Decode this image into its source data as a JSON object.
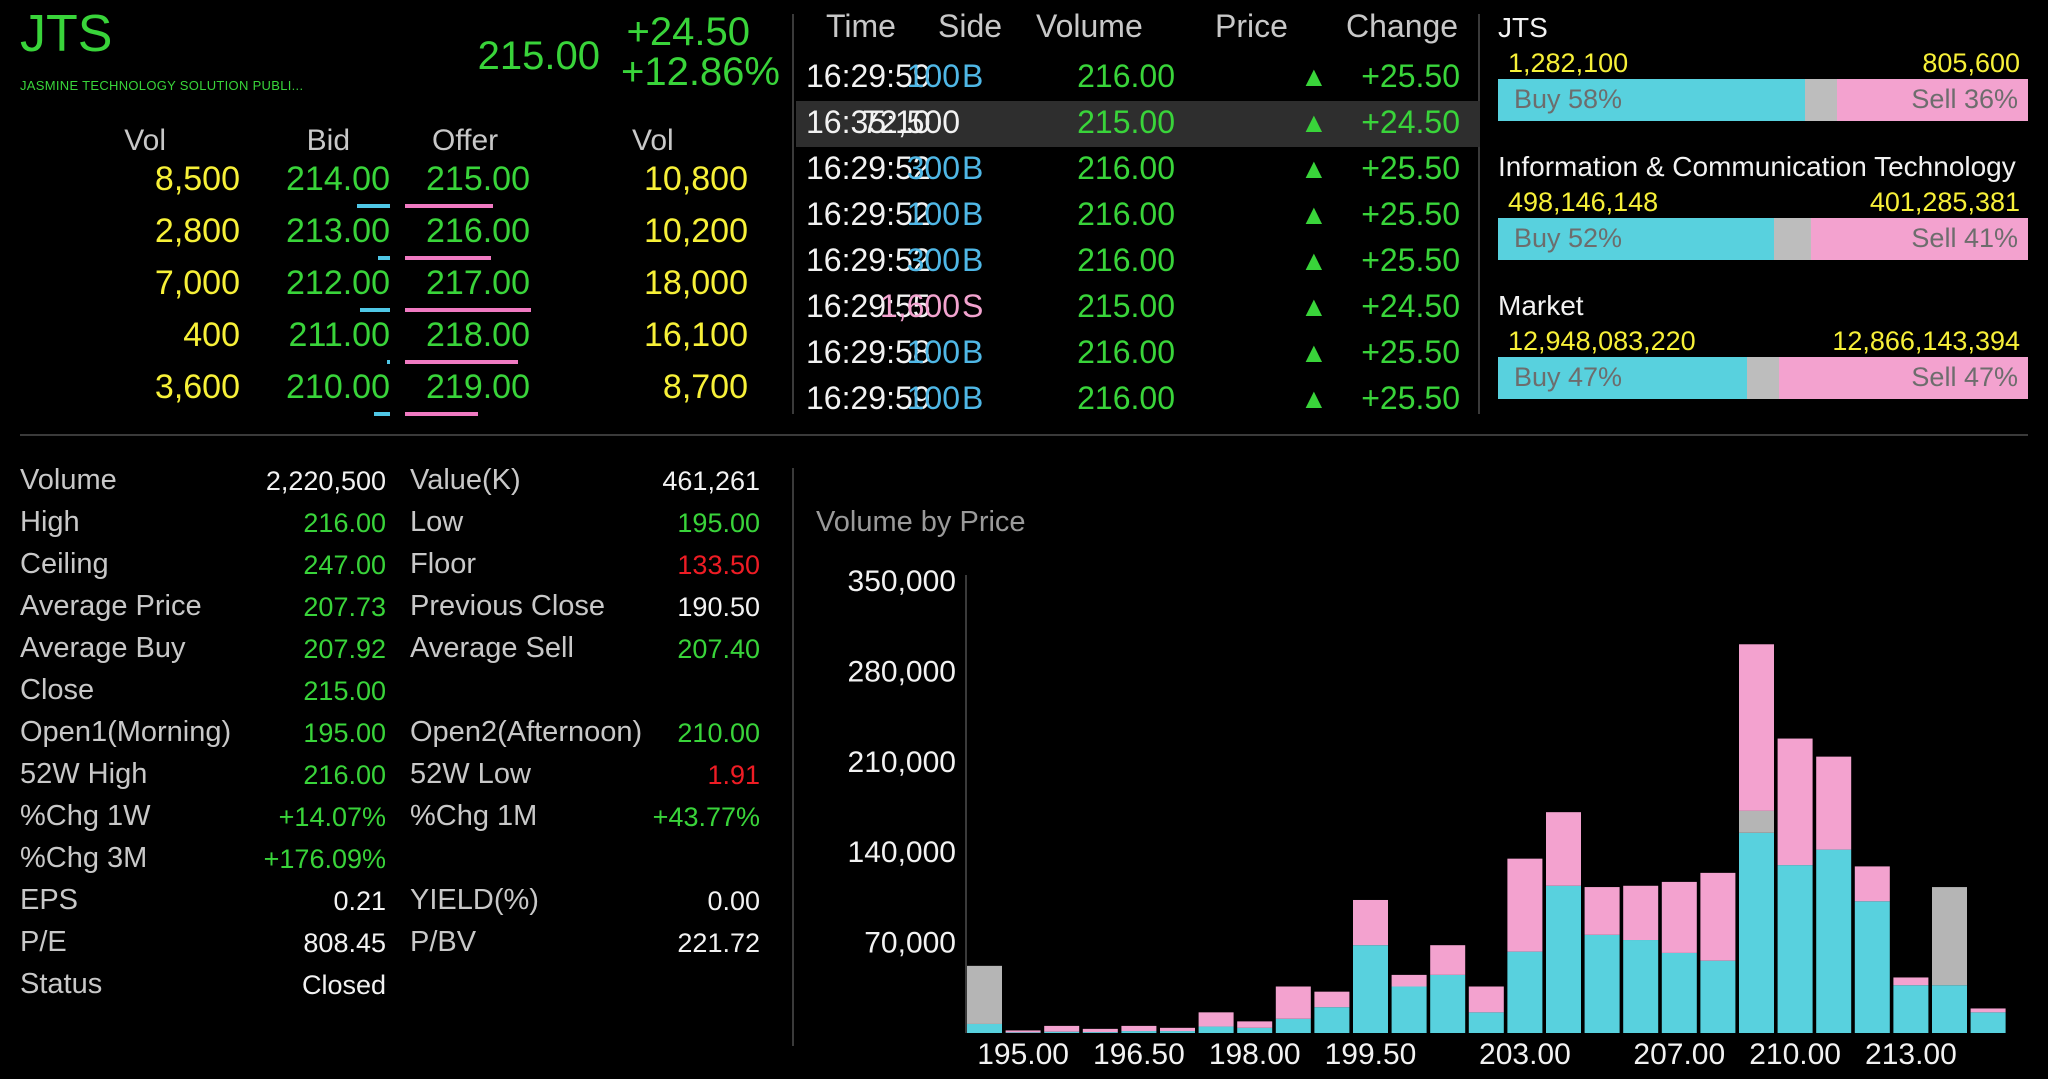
{
  "header": {
    "symbol": "JTS",
    "company": "JASMINE TECHNOLOGY SOLUTION PUBLI...",
    "last": "215.00",
    "change": "+24.50",
    "pct_change": "+12.86%"
  },
  "orderbook": {
    "headers": {
      "vol_bid": "Vol",
      "bid": "Bid",
      "offer": "Offer",
      "vol_offer": "Vol"
    },
    "rows": [
      {
        "bid_vol": "8,500",
        "bid": "214.00",
        "offer": "215.00",
        "offer_vol": "10,800",
        "bid_bar": 0.55,
        "offer_bar": 0.7
      },
      {
        "bid_vol": "2,800",
        "bid": "213.00",
        "offer": "216.00",
        "offer_vol": "10,200",
        "bid_bar": 0.2,
        "offer_bar": 0.68
      },
      {
        "bid_vol": "7,000",
        "bid": "212.00",
        "offer": "217.00",
        "offer_vol": "18,000",
        "bid_bar": 0.5,
        "offer_bar": 1.0
      },
      {
        "bid_vol": "400",
        "bid": "211.00",
        "offer": "218.00",
        "offer_vol": "16,100",
        "bid_bar": 0.03,
        "offer_bar": 0.9
      },
      {
        "bid_vol": "3,600",
        "bid": "210.00",
        "offer": "219.00",
        "offer_vol": "8,700",
        "bid_bar": 0.26,
        "offer_bar": 0.58
      }
    ]
  },
  "ticker": {
    "headers": {
      "time": "Time",
      "side": "Side",
      "volume": "Volume",
      "price": "Price",
      "change": "Change"
    },
    "rows": [
      {
        "time": "16:29:59",
        "side": "B",
        "volume": "100",
        "price": "216.00",
        "change": "+25.50"
      },
      {
        "time": "16:35:10",
        "side": "",
        "volume": "72,500",
        "price": "215.00",
        "change": "+24.50"
      },
      {
        "time": "16:29:52",
        "side": "B",
        "volume": "300",
        "price": "216.00",
        "change": "+25.50"
      },
      {
        "time": "16:29:52",
        "side": "B",
        "volume": "100",
        "price": "216.00",
        "change": "+25.50"
      },
      {
        "time": "16:29:52",
        "side": "B",
        "volume": "300",
        "price": "216.00",
        "change": "+25.50"
      },
      {
        "time": "16:29:55",
        "side": "S",
        "volume": "1,600",
        "price": "215.00",
        "change": "+24.50"
      },
      {
        "time": "16:29:58",
        "side": "B",
        "volume": "100",
        "price": "216.00",
        "change": "+25.50"
      },
      {
        "time": "16:29:59",
        "side": "B",
        "volume": "100",
        "price": "216.00",
        "change": "+25.50"
      }
    ],
    "up_arrow": "▲"
  },
  "pressure": [
    {
      "title": "JTS",
      "buy_vol": "1,282,100",
      "sell_vol": "805,600",
      "buy_label": "Buy 58%",
      "sell_label": "Sell 36%",
      "buy_pct": 58,
      "sell_pct": 36
    },
    {
      "title": "Information & Communication Technology",
      "buy_vol": "498,146,148",
      "sell_vol": "401,285,381",
      "buy_label": "Buy 52%",
      "sell_label": "Sell 41%",
      "buy_pct": 52,
      "sell_pct": 41
    },
    {
      "title": "Market",
      "buy_vol": "12,948,083,220",
      "sell_vol": "12,866,143,394",
      "buy_label": "Buy 47%",
      "sell_label": "Sell 47%",
      "buy_pct": 47,
      "sell_pct": 47
    }
  ],
  "stats": {
    "left": [
      {
        "label": "Volume",
        "value": "2,220,500",
        "color": "#f2f2f2"
      },
      {
        "label": "High",
        "value": "216.00",
        "color": "#39d43a"
      },
      {
        "label": "Ceiling",
        "value": "247.00",
        "color": "#39d43a"
      },
      {
        "label": "Average Price",
        "value": "207.73",
        "color": "#39d43a"
      },
      {
        "label": "Average Buy",
        "value": "207.92",
        "color": "#39d43a"
      },
      {
        "label": "Close",
        "value": "215.00",
        "color": "#39d43a"
      },
      {
        "label": "Open1(Morning)",
        "value": "195.00",
        "color": "#39d43a"
      },
      {
        "label": "52W High",
        "value": "216.00",
        "color": "#39d43a"
      },
      {
        "label": "%Chg 1W",
        "value": "+14.07%",
        "color": "#39d43a"
      },
      {
        "label": "%Chg 3M",
        "value": "+176.09%",
        "color": "#39d43a"
      },
      {
        "label": "EPS",
        "value": "0.21",
        "color": "#f2f2f2"
      },
      {
        "label": "P/E",
        "value": "808.45",
        "color": "#f2f2f2"
      },
      {
        "label": "Status",
        "value": "Closed",
        "color": "#f2f2f2"
      }
    ],
    "right": [
      {
        "label": "Value(K)",
        "value": "461,261",
        "color": "#f2f2f2"
      },
      {
        "label": "Low",
        "value": "195.00",
        "color": "#39d43a"
      },
      {
        "label": "Floor",
        "value": "133.50",
        "color": "#ee1c24"
      },
      {
        "label": "Previous Close",
        "value": "190.50",
        "color": "#f2f2f2"
      },
      {
        "label": "Average Sell",
        "value": "207.40",
        "color": "#39d43a"
      },
      {
        "label": "",
        "value": "",
        "color": "#f2f2f2"
      },
      {
        "label": "Open2(Afternoon)",
        "value": "210.00",
        "color": "#39d43a"
      },
      {
        "label": "52W Low",
        "value": "1.91",
        "color": "#ee1c24"
      },
      {
        "label": "%Chg 1M",
        "value": "+43.77%",
        "color": "#39d43a"
      },
      {
        "label": "",
        "value": "",
        "color": "#f2f2f2"
      },
      {
        "label": "YIELD(%)",
        "value": "0.00",
        "color": "#f2f2f2"
      },
      {
        "label": "P/BV",
        "value": "221.72",
        "color": "#f2f2f2"
      }
    ]
  },
  "chart_data": {
    "type": "bar",
    "title": "Volume by Price",
    "stacked": true,
    "ylim": [
      0,
      350000
    ],
    "yticks": [
      70000,
      140000,
      210000,
      280000,
      350000
    ],
    "ytick_labels": [
      "70,000",
      "140,000",
      "210,000",
      "280,000",
      "350,000"
    ],
    "xtick_labels": [
      {
        "index": 1,
        "label": "195.00"
      },
      {
        "index": 4,
        "label": "196.50"
      },
      {
        "index": 7,
        "label": "198.00"
      },
      {
        "index": 10,
        "label": "199.50"
      },
      {
        "index": 14,
        "label": "203.00"
      },
      {
        "index": 18,
        "label": "207.00"
      },
      {
        "index": 21,
        "label": "210.00"
      },
      {
        "index": 24,
        "label": "213.00"
      }
    ],
    "colors": {
      "buy": "#58d1de",
      "sell": "#f3a2cf",
      "open": "#b5b5b5"
    },
    "series": [
      {
        "key": "buy",
        "values": [
          7000,
          500,
          1000,
          700,
          1500,
          1500,
          5000,
          4000,
          11000,
          20000,
          68000,
          36000,
          45000,
          16000,
          63000,
          114000,
          76000,
          72000,
          62000,
          56000,
          155000,
          130000,
          142000,
          102000,
          37000,
          37000,
          16000
        ]
      },
      {
        "key": "sell",
        "values": [
          0,
          1500,
          4500,
          2500,
          4000,
          2500,
          11000,
          5000,
          25000,
          12000,
          35000,
          9000,
          23000,
          20000,
          72000,
          57000,
          37000,
          42000,
          55000,
          68000,
          129000,
          98000,
          72000,
          27000,
          6000,
          0,
          3000
        ]
      },
      {
        "key": "open",
        "values": [
          45000,
          0,
          0,
          0,
          0,
          0,
          0,
          0,
          0,
          0,
          0,
          0,
          0,
          0,
          0,
          0,
          0,
          0,
          0,
          0,
          17000,
          0,
          0,
          0,
          0,
          76000,
          0
        ]
      }
    ]
  }
}
